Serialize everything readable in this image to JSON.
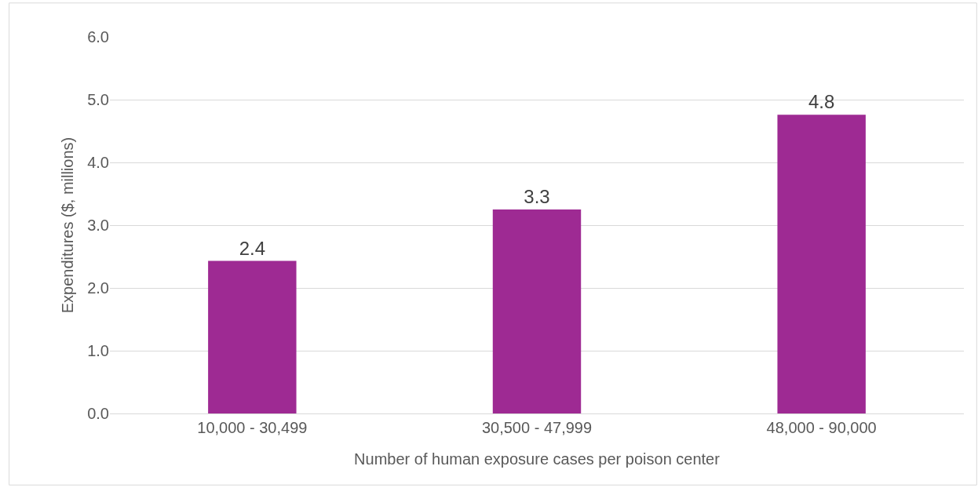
{
  "chart_data": {
    "type": "bar",
    "xlabel": "Number of human exposure cases per poison center",
    "ylabel": "Expenditures ($, millions)",
    "categories": [
      "10,000 - 30,499",
      "30,500 - 47,999",
      "48,000 - 90,000"
    ],
    "values": [
      2.43,
      3.25,
      4.76
    ],
    "value_labels": [
      "2.4",
      "3.3",
      "4.8"
    ],
    "color": "#9e2a93",
    "ylim": [
      0,
      6
    ],
    "yticks": [
      {
        "value": 0,
        "label": "0.0"
      },
      {
        "value": 1,
        "label": "1.0"
      },
      {
        "value": 2,
        "label": "2.0"
      },
      {
        "value": 3,
        "label": "3.0"
      },
      {
        "value": 4,
        "label": "4.0"
      },
      {
        "value": 5,
        "label": "5.0"
      },
      {
        "value": 6,
        "label": "6.0"
      }
    ],
    "grid": "y",
    "legend": false
  }
}
